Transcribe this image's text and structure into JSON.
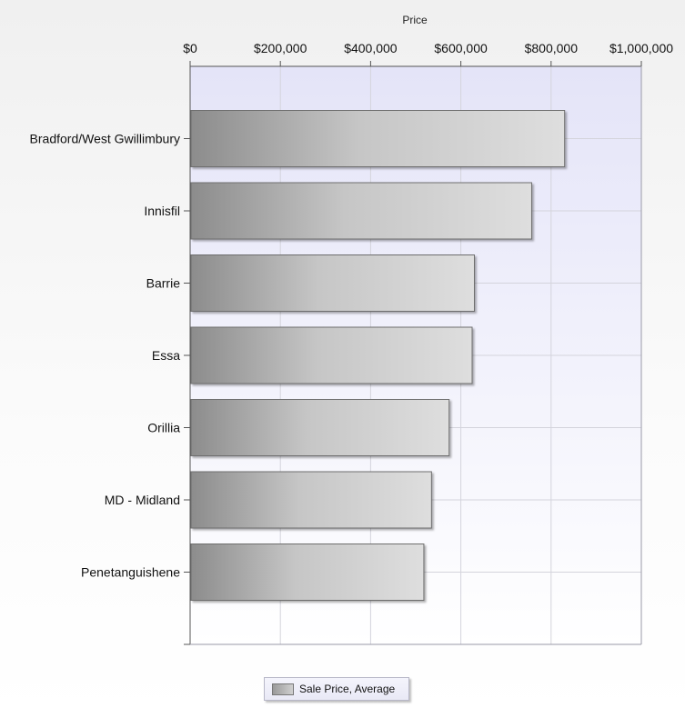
{
  "chart_data": {
    "type": "bar",
    "orientation": "horizontal",
    "title": "Price",
    "xlabel": "Price",
    "ylabel": "",
    "categories": [
      "Bradford/West Gwillimbury",
      "Innisfil",
      "Barrie",
      "Essa",
      "Orillia",
      "MD - Midland",
      "Penetanguishene"
    ],
    "series": [
      {
        "name": "Sale Price, Average",
        "values": [
          830000,
          757000,
          630000,
          625000,
          574000,
          535000,
          518000
        ]
      }
    ],
    "xlim": [
      0,
      1000000
    ],
    "x_ticks": [
      0,
      200000,
      400000,
      600000,
      800000,
      1000000
    ],
    "x_tick_labels": [
      "$0",
      "$200,000",
      "$400,000",
      "$600,000",
      "$800,000",
      "$1,000,000"
    ],
    "x_axis_position": "top",
    "grid": true,
    "legend_position": "bottom-center",
    "colors": {
      "plot_bg_top": "#e4e4f8",
      "plot_bg_bottom": "#ffffff",
      "bar_dark": "#8c8c8c",
      "bar_light": "#dedede",
      "grid": "#d4d4dc",
      "axis": "#555555"
    }
  }
}
